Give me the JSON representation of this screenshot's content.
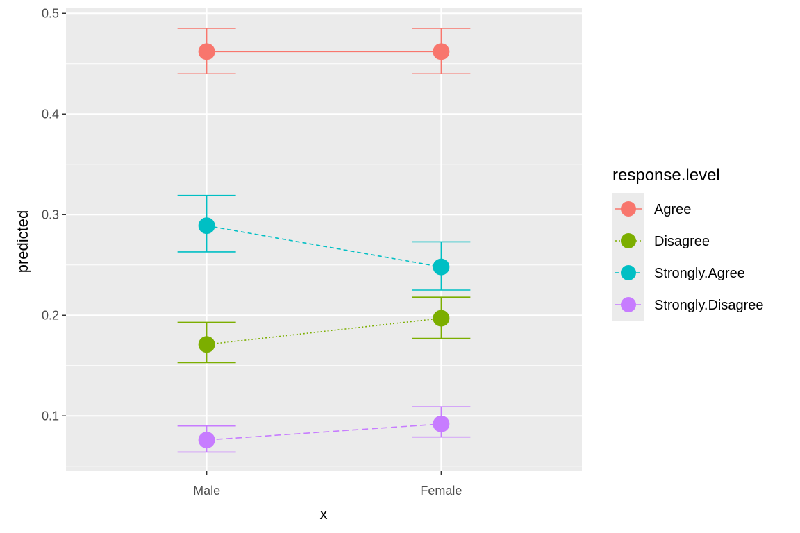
{
  "chart_data": {
    "type": "scatter",
    "title": "",
    "xlabel": "x",
    "ylabel": "predicted",
    "categories": [
      "Male",
      "Female"
    ],
    "ylim": [
      0.045,
      0.505
    ],
    "y_ticks": [
      0.1,
      0.2,
      0.3,
      0.4,
      0.5
    ],
    "y_tick_labels": [
      "0.1",
      "0.2",
      "0.3",
      "0.4",
      "0.5"
    ],
    "grid": true,
    "legend": {
      "title": "response.level",
      "position": "right"
    },
    "series": [
      {
        "name": "Agree",
        "color": "#F8766D",
        "linestyle": "solid",
        "values": [
          0.462,
          0.462
        ],
        "lower": [
          0.44,
          0.44
        ],
        "upper": [
          0.485,
          0.485
        ]
      },
      {
        "name": "Disagree",
        "color": "#7CAE00",
        "linestyle": "dotted",
        "values": [
          0.171,
          0.197
        ],
        "lower": [
          0.153,
          0.177
        ],
        "upper": [
          0.193,
          0.218
        ]
      },
      {
        "name": "Strongly.Agree",
        "color": "#00BFC4",
        "linestyle": "dashed",
        "values": [
          0.289,
          0.248
        ],
        "lower": [
          0.263,
          0.225
        ],
        "upper": [
          0.319,
          0.273
        ]
      },
      {
        "name": "Strongly.Disagree",
        "color": "#C77CFF",
        "linestyle": "longdash",
        "values": [
          0.076,
          0.092
        ],
        "lower": [
          0.064,
          0.079
        ],
        "upper": [
          0.09,
          0.109
        ]
      }
    ]
  }
}
